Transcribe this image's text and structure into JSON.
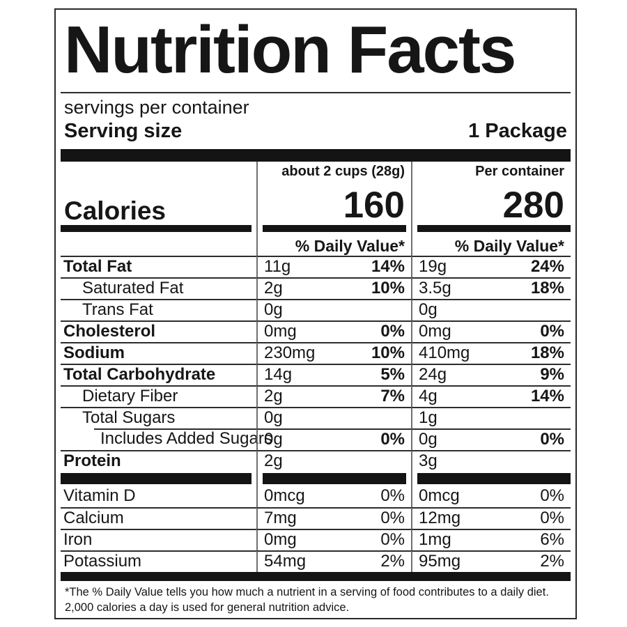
{
  "label": {
    "title": "Nutrition Facts",
    "servings_per_container": "servings per container",
    "serving_size_label": "Serving size",
    "serving_size_value": "1 Package",
    "columns": {
      "col1_header": "about 2 cups (28g)",
      "col2_header": "Per container"
    },
    "calories": {
      "label": "Calories",
      "col1": "160",
      "col2": "280"
    },
    "daily_value_header": "% Daily Value*",
    "nutrients": [
      {
        "label": "Total Fat",
        "col1_amount": "11g",
        "col1_dv": "14%",
        "col2_amount": "19g",
        "col2_dv": "24%"
      },
      {
        "label": "Saturated Fat",
        "col1_amount": "2g",
        "col1_dv": "10%",
        "col2_amount": "3.5g",
        "col2_dv": "18%"
      },
      {
        "label": "Trans Fat",
        "col1_amount": "0g",
        "col1_dv": "",
        "col2_amount": "0g",
        "col2_dv": ""
      },
      {
        "label": "Cholesterol",
        "col1_amount": "0mg",
        "col1_dv": "0%",
        "col2_amount": "0mg",
        "col2_dv": "0%"
      },
      {
        "label": "Sodium",
        "col1_amount": "230mg",
        "col1_dv": "10%",
        "col2_amount": "410mg",
        "col2_dv": "18%"
      },
      {
        "label": "Total Carbohydrate",
        "col1_amount": "14g",
        "col1_dv": "5%",
        "col2_amount": "24g",
        "col2_dv": "9%"
      },
      {
        "label": "Dietary Fiber",
        "col1_amount": "2g",
        "col1_dv": "7%",
        "col2_amount": "4g",
        "col2_dv": "14%"
      },
      {
        "label": "Total Sugars",
        "col1_amount": "0g",
        "col1_dv": "",
        "col2_amount": "1g",
        "col2_dv": ""
      },
      {
        "label": "Includes Added Sugars",
        "col1_amount": "0g",
        "col1_dv": "0%",
        "col2_amount": "0g",
        "col2_dv": "0%"
      },
      {
        "label": "Protein",
        "col1_amount": "2g",
        "col1_dv": "",
        "col2_amount": "3g",
        "col2_dv": ""
      }
    ],
    "micronutrients": [
      {
        "label": "Vitamin D",
        "col1_amount": "0mcg",
        "col1_dv": "0%",
        "col2_amount": "0mcg",
        "col2_dv": "0%"
      },
      {
        "label": "Calcium",
        "col1_amount": "7mg",
        "col1_dv": "0%",
        "col2_amount": "12mg",
        "col2_dv": "0%"
      },
      {
        "label": "Iron",
        "col1_amount": "0mg",
        "col1_dv": "0%",
        "col2_amount": "1mg",
        "col2_dv": "6%"
      },
      {
        "label": "Potassium",
        "col1_amount": "54mg",
        "col1_dv": "2%",
        "col2_amount": "95mg",
        "col2_dv": "2%"
      }
    ],
    "footnote_line1": "*The % Daily Value tells you how much a nutrient in a serving of food contributes to a daily diet.",
    "footnote_line2": "2,000 calories a day is used for general nutrition advice.",
    "colors": {
      "ink": "#161616",
      "background": "#ffffff"
    }
  }
}
